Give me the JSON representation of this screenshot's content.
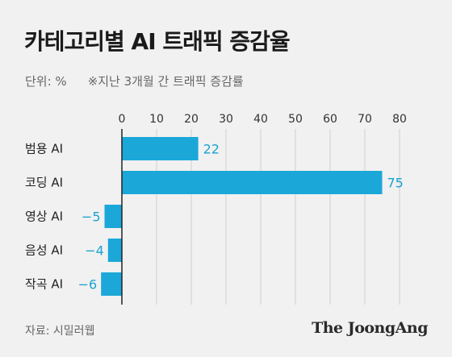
{
  "title": "카테고리별 AI 트래픽 증감율",
  "unit": "단위: %",
  "note": "※지난 3개월 간 트래픽 증감률",
  "source": "자료: 시밀러웹",
  "logo": "The JoongAng",
  "chart_data": {
    "type": "bar",
    "orientation": "horizontal",
    "categories": [
      "범용 AI",
      "코딩 AI",
      "영상 AI",
      "음성 AI",
      "작곡 AI"
    ],
    "values": [
      22,
      75,
      -5,
      -4,
      -6
    ],
    "value_labels": [
      "22",
      "75",
      "−5",
      "−4",
      "−6"
    ],
    "xlim": [
      0,
      80
    ],
    "xticks": [
      0,
      10,
      20,
      30,
      40,
      50,
      60,
      70,
      80
    ],
    "bar_color": "#1ba8d8",
    "value_label_color": "#1aa3cf",
    "grid": true
  }
}
